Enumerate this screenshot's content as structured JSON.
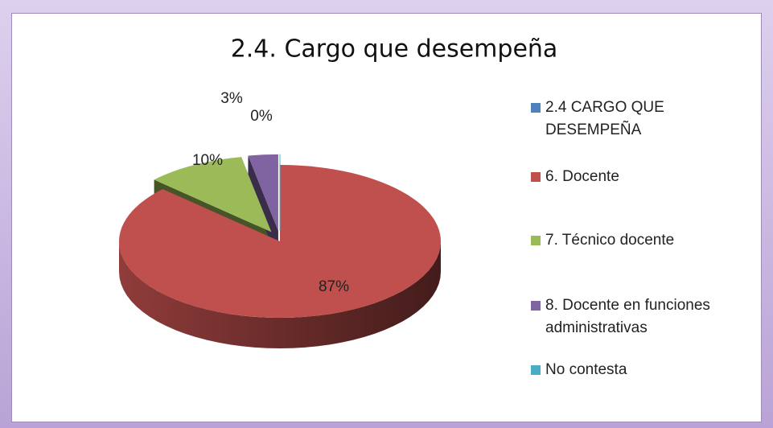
{
  "chart_data": {
    "type": "pie",
    "title": "2.4. Cargo que desempeña",
    "categories": [
      "2.4 CARGO QUE DESEMPEÑA",
      "6. Docente",
      "7. Técnico docente",
      "8. Docente en funciones administrativas",
      "No contesta"
    ],
    "values": [
      0,
      87,
      10,
      3,
      0
    ],
    "value_labels": [
      null,
      "87%",
      "10%",
      "3%",
      "0%"
    ],
    "colors": [
      "#4f81bd",
      "#c0504d",
      "#9bbb59",
      "#8064a2",
      "#4bacc6"
    ],
    "legend": "right"
  }
}
